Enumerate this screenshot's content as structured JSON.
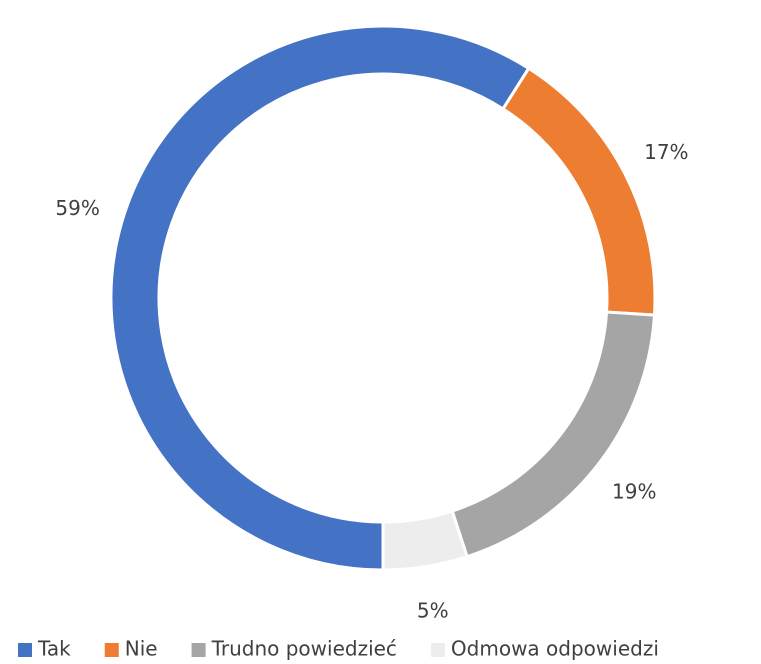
{
  "chart_data": {
    "type": "donut",
    "categories": [
      "Tak",
      "Nie",
      "Trudno powiedzieć",
      "Odmowa odpowiedzi"
    ],
    "values": [
      59,
      17,
      19,
      5
    ],
    "value_labels": [
      "59%",
      "17%",
      "19%",
      "5%"
    ],
    "colors": [
      "#4472c4",
      "#ed7d31",
      "#a5a5a5",
      "#ededed"
    ],
    "start_angle": 180,
    "legend": "bottom"
  }
}
